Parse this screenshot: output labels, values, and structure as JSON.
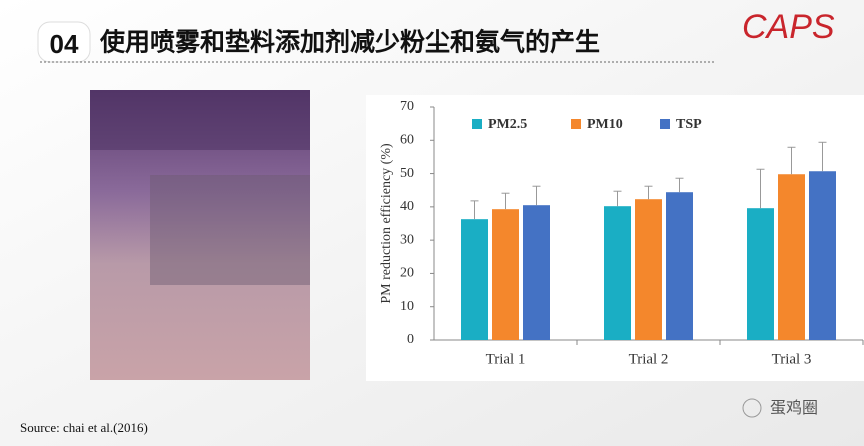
{
  "slide": {
    "number": "04",
    "title": "使用喷雾和垫料添加剂减少粉尘和氨气的产生",
    "logo": "CAPS",
    "source": "Source: chai et al.(2016)",
    "watermark": "蛋鸡圈"
  },
  "chart_data": {
    "type": "bar",
    "ylabel": "PM reduction efficiency (%)",
    "categories": [
      "Trial 1",
      "Trial 2",
      "Trial 3"
    ],
    "series": [
      {
        "name": "PM2.5",
        "color": "#1aaec4",
        "values": [
          36.3,
          40.2,
          39.6
        ],
        "errors": [
          5.5,
          4.5,
          11.7
        ]
      },
      {
        "name": "PM10",
        "color": "#f4872c",
        "values": [
          39.3,
          42.3,
          49.8
        ],
        "errors": [
          4.8,
          3.9,
          8.1
        ]
      },
      {
        "name": "TSP",
        "color": "#4472c4",
        "values": [
          40.5,
          44.4,
          50.7
        ],
        "errors": [
          5.7,
          4.2,
          8.7
        ]
      }
    ],
    "ylim": [
      0,
      70
    ],
    "yticks": [
      0,
      10,
      20,
      30,
      40,
      50,
      60,
      70
    ],
    "grid": false,
    "legend": "top-left"
  }
}
